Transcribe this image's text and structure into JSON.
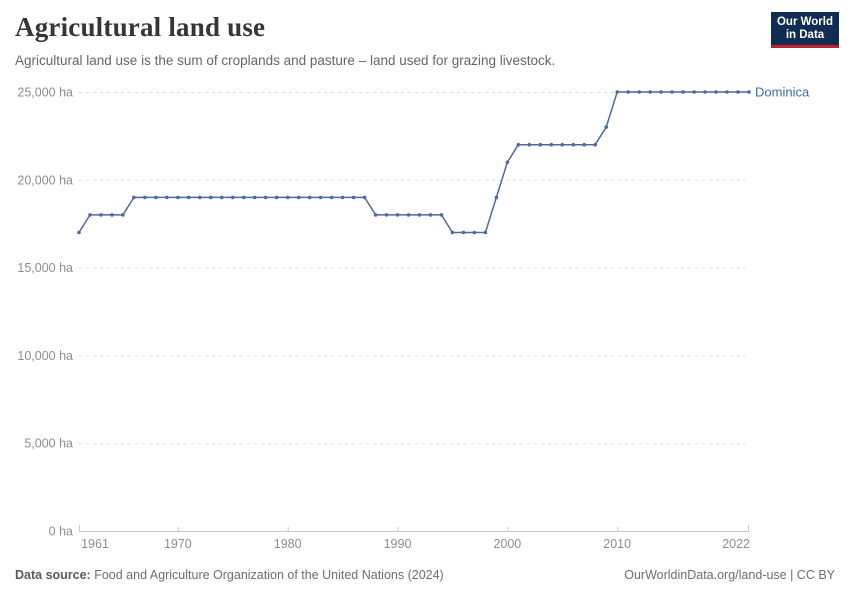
{
  "header": {
    "title": "Agricultural land use",
    "subtitle": "Agricultural land use is the sum of croplands and pasture – land used for grazing livestock."
  },
  "logo": {
    "line1": "Our World",
    "line2": "in Data",
    "bg_color": "#102C52",
    "accent_color": "#C5202E"
  },
  "chart_data": {
    "type": "line",
    "title": "Agricultural land use",
    "ylabel": "",
    "xlabel": "",
    "unit": "ha",
    "ylim": [
      0,
      25000
    ],
    "yticks": [
      0,
      5000,
      10000,
      15000,
      20000,
      25000
    ],
    "ytick_suffix": " ha",
    "xticks": [
      1961,
      1970,
      1980,
      1990,
      2000,
      2010,
      2022
    ],
    "grid": true,
    "legend_position": "end-of-line-label",
    "x": [
      1961,
      1962,
      1963,
      1964,
      1965,
      1966,
      1967,
      1968,
      1969,
      1970,
      1971,
      1972,
      1973,
      1974,
      1975,
      1976,
      1977,
      1978,
      1979,
      1980,
      1981,
      1982,
      1983,
      1984,
      1985,
      1986,
      1987,
      1988,
      1989,
      1990,
      1991,
      1992,
      1993,
      1994,
      1995,
      1996,
      1997,
      1998,
      1999,
      2000,
      2001,
      2002,
      2003,
      2004,
      2005,
      2006,
      2007,
      2008,
      2009,
      2010,
      2011,
      2012,
      2013,
      2014,
      2015,
      2016,
      2017,
      2018,
      2019,
      2020,
      2021,
      2022
    ],
    "series": [
      {
        "name": "Dominica",
        "color": "#4C6A9C",
        "label_color": "#3D69AD",
        "values": [
          17000,
          18000,
          18000,
          18000,
          18000,
          19000,
          19000,
          19000,
          19000,
          19000,
          19000,
          19000,
          19000,
          19000,
          19000,
          19000,
          19000,
          19000,
          19000,
          19000,
          19000,
          19000,
          19000,
          19000,
          19000,
          19000,
          19000,
          18000,
          18000,
          18000,
          18000,
          18000,
          18000,
          18000,
          17000,
          17000,
          17000,
          17000,
          19000,
          21000,
          22000,
          22000,
          22000,
          22000,
          22000,
          22000,
          22000,
          22000,
          23000,
          25000,
          25000,
          25000,
          25000,
          25000,
          25000,
          25000,
          25000,
          25000,
          25000,
          25000,
          25000,
          25000
        ]
      }
    ]
  },
  "colors": {
    "line": "#4C6A9C",
    "axis_text": "#8E8E8E",
    "grid": "#DDDDDD",
    "axis_line": "#CBCBCB"
  },
  "footer": {
    "datasource_label": "Data source:",
    "datasource_text": " Food and Agriculture Organization of the United Nations (2024)",
    "license_text": "OurWorldinData.org/land-use | CC BY"
  }
}
